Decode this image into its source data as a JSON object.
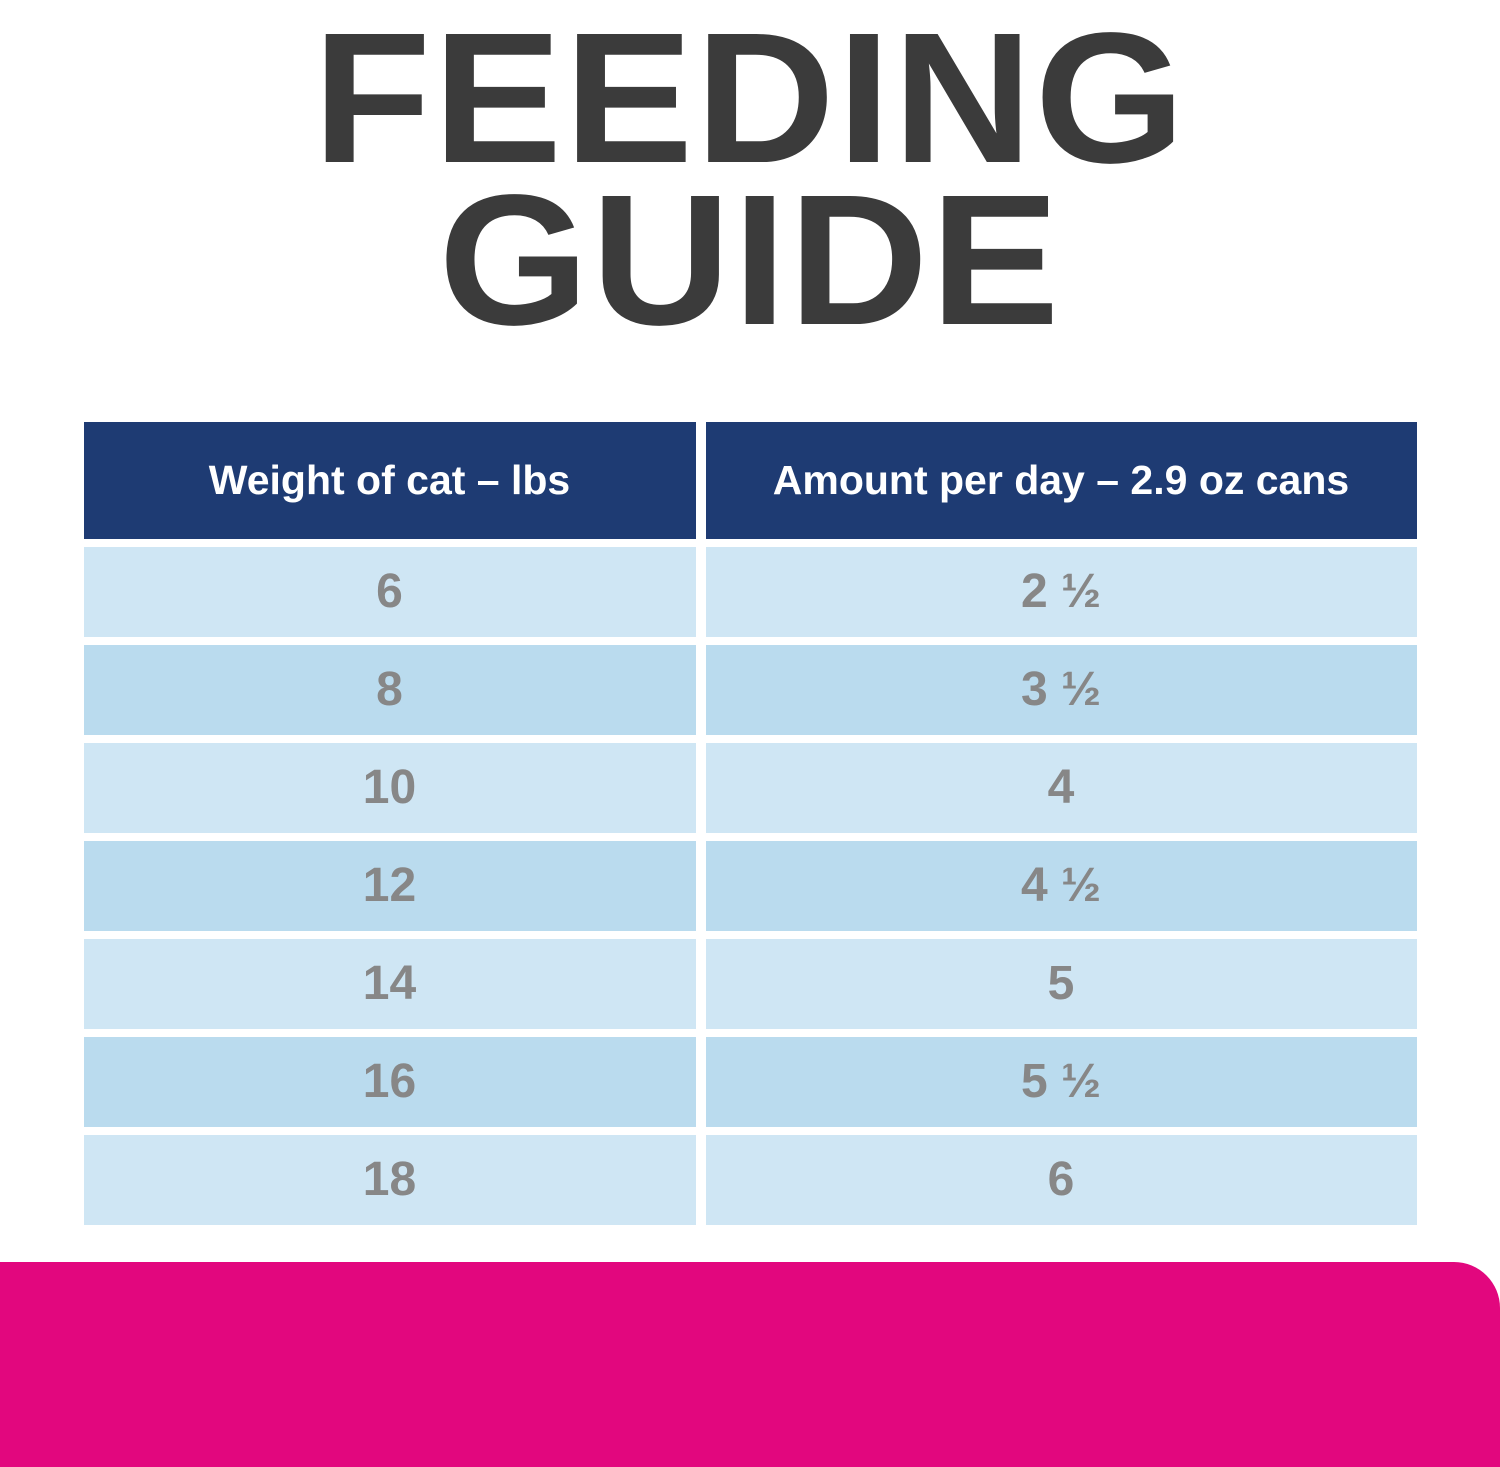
{
  "title": {
    "line1": "FEEDING",
    "line2": "GUIDE"
  },
  "table": {
    "headers": {
      "weight": "Weight of cat – lbs",
      "amount": "Amount per day – 2.9 oz cans"
    },
    "rows": [
      {
        "weight": "6",
        "amount": "2 ½"
      },
      {
        "weight": "8",
        "amount": "3 ½"
      },
      {
        "weight": "10",
        "amount": "4"
      },
      {
        "weight": "12",
        "amount": "4 ½"
      },
      {
        "weight": "14",
        "amount": "5"
      },
      {
        "weight": "16",
        "amount": "5 ½"
      },
      {
        "weight": "18",
        "amount": "6"
      }
    ]
  },
  "colors": {
    "header_bg": "#1e3b73",
    "row_light": "#cfe6f4",
    "row_dark": "#badbee",
    "accent_pink": "#e2077e",
    "title_text": "#3b3b3b",
    "cell_text": "#878787"
  }
}
